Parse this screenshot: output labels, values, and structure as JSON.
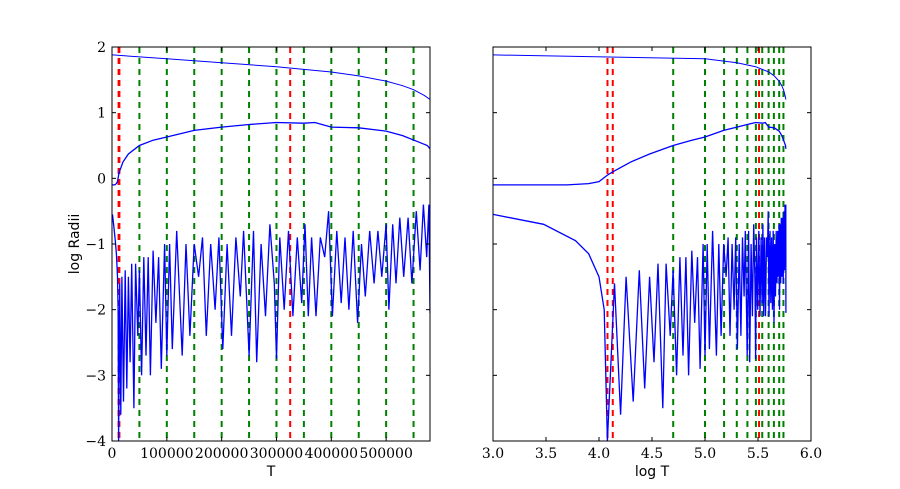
{
  "chart_data": [
    {
      "type": "line",
      "xlabel": "T",
      "ylabel": "log Radii",
      "xlim": [
        0,
        580000
      ],
      "ylim": [
        -4,
        2
      ],
      "x_scale": "linear",
      "xticks": [
        0,
        100000,
        200000,
        300000,
        400000,
        500000
      ],
      "xtick_labels": [
        "0",
        "100000",
        "200000",
        "300000",
        "400000",
        "500000"
      ],
      "yticks": [
        -4,
        -3,
        -2,
        -1,
        0,
        1,
        2
      ],
      "ytick_labels": [
        "−4",
        "−3",
        "−2",
        "−1",
        "0",
        "1",
        "2"
      ],
      "grid": false,
      "line_color": "#0000ff",
      "vlines": [
        {
          "x": 12000,
          "color": "#ff0000"
        },
        {
          "x": 13500,
          "color": "#ff0000"
        },
        {
          "x": 325000,
          "color": "#ff0000"
        },
        {
          "x": 50000,
          "color": "#008000"
        },
        {
          "x": 100000,
          "color": "#008000"
        },
        {
          "x": 150000,
          "color": "#008000"
        },
        {
          "x": 200000,
          "color": "#008000"
        },
        {
          "x": 250000,
          "color": "#008000"
        },
        {
          "x": 300000,
          "color": "#008000"
        },
        {
          "x": 350000,
          "color": "#008000"
        },
        {
          "x": 400000,
          "color": "#008000"
        },
        {
          "x": 450000,
          "color": "#008000"
        },
        {
          "x": 500000,
          "color": "#008000"
        },
        {
          "x": 550000,
          "color": "#008000"
        }
      ]
    },
    {
      "type": "line",
      "xlabel": "log T",
      "ylabel": "",
      "xlim": [
        3.0,
        6.0
      ],
      "ylim": [
        -4,
        2
      ],
      "x_scale": "log10 of T",
      "xticks": [
        3.0,
        3.5,
        4.0,
        4.5,
        5.0,
        5.5,
        6.0
      ],
      "xtick_labels": [
        "3.0",
        "3.5",
        "4.0",
        "4.5",
        "5.0",
        "5.5",
        "6.0"
      ],
      "yticks": [
        -4,
        -3,
        -2,
        -1,
        0,
        1,
        2
      ],
      "ytick_labels": [],
      "grid": false,
      "line_color": "#0000ff",
      "vlines": [
        {
          "x": 4.08,
          "color": "#ff0000"
        },
        {
          "x": 4.13,
          "color": "#ff0000"
        },
        {
          "x": 5.51,
          "color": "#ff0000"
        },
        {
          "x": 4.7,
          "color": "#008000"
        },
        {
          "x": 5.0,
          "color": "#008000"
        },
        {
          "x": 5.18,
          "color": "#008000"
        },
        {
          "x": 5.3,
          "color": "#008000"
        },
        {
          "x": 5.4,
          "color": "#008000"
        },
        {
          "x": 5.48,
          "color": "#008000"
        },
        {
          "x": 5.54,
          "color": "#008000"
        },
        {
          "x": 5.6,
          "color": "#008000"
        },
        {
          "x": 5.65,
          "color": "#008000"
        },
        {
          "x": 5.7,
          "color": "#008000"
        },
        {
          "x": 5.74,
          "color": "#008000"
        }
      ]
    }
  ],
  "series_T": [
    {
      "points": [
        [
          1000,
          1.88
        ],
        [
          100000,
          1.82
        ],
        [
          200000,
          1.76
        ],
        [
          300000,
          1.7
        ],
        [
          400000,
          1.62
        ],
        [
          450000,
          1.56
        ],
        [
          500000,
          1.48
        ],
        [
          530000,
          1.41
        ],
        [
          550000,
          1.35
        ],
        [
          570000,
          1.26
        ],
        [
          580000,
          1.2
        ]
      ]
    },
    {
      "points": [
        [
          1000,
          -0.1
        ],
        [
          5000,
          -0.1
        ],
        [
          8000,
          -0.08
        ],
        [
          10000,
          -0.05
        ],
        [
          12000,
          0.05
        ],
        [
          13500,
          0.1
        ],
        [
          20000,
          0.25
        ],
        [
          30000,
          0.37
        ],
        [
          50000,
          0.5
        ],
        [
          75000,
          0.58
        ],
        [
          100000,
          0.63
        ],
        [
          150000,
          0.73
        ],
        [
          200000,
          0.78
        ],
        [
          250000,
          0.82
        ],
        [
          300000,
          0.85
        ],
        [
          350000,
          0.84
        ],
        [
          370000,
          0.85
        ],
        [
          400000,
          0.78
        ],
        [
          450000,
          0.77
        ],
        [
          500000,
          0.72
        ],
        [
          530000,
          0.65
        ],
        [
          560000,
          0.55
        ],
        [
          575000,
          0.5
        ],
        [
          580000,
          0.45
        ]
      ]
    },
    {
      "points": [
        [
          1000,
          -0.55
        ],
        [
          3000,
          -0.7
        ],
        [
          6000,
          -0.95
        ],
        [
          8000,
          -1.15
        ],
        [
          10000,
          -1.5
        ],
        [
          11200,
          -2.0
        ],
        [
          12000,
          -4.0
        ],
        [
          14000,
          -1.6
        ],
        [
          16000,
          -3.6
        ],
        [
          18000,
          -1.5
        ],
        [
          21000,
          -3.4
        ],
        [
          24000,
          -1.4
        ],
        [
          27000,
          -3.2
        ],
        [
          30000,
          -1.5
        ],
        [
          33000,
          -2.8
        ],
        [
          36000,
          -1.3
        ],
        [
          40000,
          -3.5
        ],
        [
          43000,
          -1.3
        ],
        [
          47000,
          -2.4
        ],
        [
          50000,
          -1.4
        ],
        [
          54000,
          -3.0
        ],
        [
          58000,
          -1.2
        ],
        [
          62000,
          -2.7
        ],
        [
          66000,
          -1.2
        ],
        [
          70000,
          -3.0
        ],
        [
          75000,
          -1.1
        ],
        [
          80000,
          -2.2
        ],
        [
          85000,
          -1.2
        ],
        [
          90000,
          -2.9
        ],
        [
          96000,
          -1.0
        ],
        [
          100000,
          -2.7
        ],
        [
          105000,
          -1.0
        ],
        [
          110000,
          -2.6
        ],
        [
          118000,
          -0.8
        ],
        [
          128000,
          -2.7
        ],
        [
          135000,
          -1.0
        ],
        [
          142000,
          -2.4
        ],
        [
          150000,
          -1.0
        ],
        [
          158000,
          -1.5
        ],
        [
          165000,
          -0.9
        ],
        [
          172000,
          -2.4
        ],
        [
          180000,
          -1.0
        ],
        [
          188000,
          -2.0
        ],
        [
          195000,
          -0.9
        ],
        [
          202000,
          -2.6
        ],
        [
          210000,
          -1.0
        ],
        [
          218000,
          -2.4
        ],
        [
          226000,
          -0.9
        ],
        [
          234000,
          -1.8
        ],
        [
          240000,
          -0.8
        ],
        [
          250000,
          -2.7
        ],
        [
          258000,
          -0.8
        ],
        [
          264000,
          -2.8
        ],
        [
          272000,
          -1.0
        ],
        [
          280000,
          -2.1
        ],
        [
          288000,
          -0.7
        ],
        [
          296000,
          -1.6
        ],
        [
          300000,
          -2.75
        ],
        [
          306000,
          -0.9
        ],
        [
          314000,
          -2.0
        ],
        [
          322000,
          -0.8
        ],
        [
          330000,
          -2.1
        ],
        [
          338000,
          -0.9
        ],
        [
          346000,
          -1.9
        ],
        [
          352000,
          -0.7
        ],
        [
          358000,
          -2.1
        ],
        [
          364000,
          -0.9
        ],
        [
          372000,
          -2.1
        ],
        [
          380000,
          -0.9
        ],
        [
          388000,
          -1.2
        ],
        [
          395000,
          -0.5
        ],
        [
          402000,
          -2.1
        ],
        [
          410000,
          -0.8
        ],
        [
          418000,
          -1.9
        ],
        [
          425000,
          -0.9
        ],
        [
          432000,
          -2.0
        ],
        [
          440000,
          -0.8
        ],
        [
          448000,
          -2.2
        ],
        [
          455000,
          -1.0
        ],
        [
          462000,
          -1.8
        ],
        [
          470000,
          -0.8
        ],
        [
          478000,
          -1.6
        ],
        [
          485000,
          -0.8
        ],
        [
          492000,
          -1.5
        ],
        [
          500000,
          -0.7
        ],
        [
          505000,
          -2.0
        ],
        [
          512000,
          -0.7
        ],
        [
          518000,
          -1.6
        ],
        [
          525000,
          -0.6
        ],
        [
          532000,
          -1.5
        ],
        [
          540000,
          -0.6
        ],
        [
          547000,
          -1.6
        ],
        [
          555000,
          -0.5
        ],
        [
          562000,
          -1.4
        ],
        [
          568000,
          -0.4
        ],
        [
          574000,
          -1.2
        ],
        [
          578000,
          -0.4
        ],
        [
          580000,
          -2.05
        ]
      ]
    }
  ]
}
